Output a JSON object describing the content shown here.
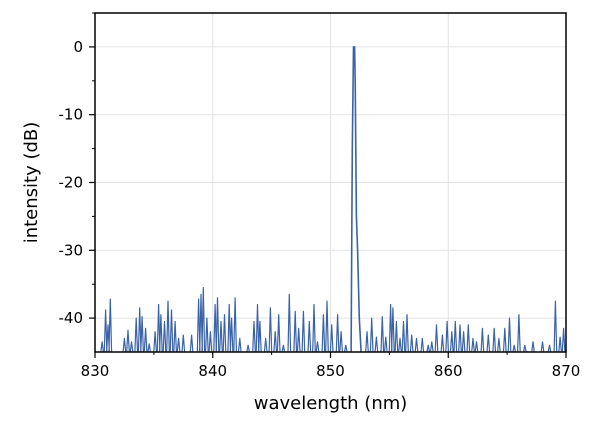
{
  "chart_data": {
    "type": "line",
    "title": "",
    "xlabel": "wavelength (nm)",
    "ylabel": "intensity (dB)",
    "xlim": [
      830,
      870
    ],
    "ylim": [
      -45,
      5
    ],
    "xticks": [
      830,
      840,
      850,
      860,
      870
    ],
    "yticks": [
      0,
      -10,
      -20,
      -30,
      -40
    ],
    "xtick_labels": [
      "830",
      "840",
      "850",
      "860",
      "870"
    ],
    "ytick_labels": [
      "0",
      "-10",
      "-20",
      "-30",
      "-40"
    ],
    "grid": true,
    "line_color": "#3a62a8",
    "noise_floor": -45,
    "series": [
      {
        "x": [
          851.75,
          851.85,
          851.95,
          852.05,
          852.1,
          852.2,
          852.3,
          852.45,
          852.6
        ],
        "y": [
          -45,
          -15,
          0,
          0,
          -5,
          -25,
          -30,
          -40,
          -45
        ]
      }
    ],
    "noise_spikes": [
      [
        830.6,
        -43.5
      ],
      [
        830.9,
        -38.8
      ],
      [
        831.1,
        -41.0
      ],
      [
        831.3,
        -37.2
      ],
      [
        832.5,
        -43.0
      ],
      [
        832.8,
        -41.8
      ],
      [
        833.1,
        -43.5
      ],
      [
        833.5,
        -40.0
      ],
      [
        833.8,
        -38.5
      ],
      [
        834.0,
        -39.8
      ],
      [
        834.3,
        -41.5
      ],
      [
        834.6,
        -43.8
      ],
      [
        835.1,
        -42.0
      ],
      [
        835.4,
        -38.0
      ],
      [
        835.6,
        -39.5
      ],
      [
        835.9,
        -40.5
      ],
      [
        836.2,
        -37.5
      ],
      [
        836.5,
        -38.8
      ],
      [
        836.8,
        -40.5
      ],
      [
        837.1,
        -43.0
      ],
      [
        837.5,
        -42.5
      ],
      [
        838.2,
        -42.5
      ],
      [
        838.8,
        -37.2
      ],
      [
        839.0,
        -36.5
      ],
      [
        839.2,
        -35.5
      ],
      [
        839.5,
        -40.0
      ],
      [
        839.8,
        -42.0
      ],
      [
        840.2,
        -38.0
      ],
      [
        840.4,
        -37.0
      ],
      [
        840.7,
        -40.5
      ],
      [
        841.0,
        -39.5
      ],
      [
        841.4,
        -38.0
      ],
      [
        841.6,
        -40.0
      ],
      [
        841.9,
        -37.0
      ],
      [
        842.3,
        -43.0
      ],
      [
        843.0,
        -44.0
      ],
      [
        843.5,
        -40.5
      ],
      [
        843.8,
        -38.0
      ],
      [
        844.0,
        -40.5
      ],
      [
        844.5,
        -43.0
      ],
      [
        844.9,
        -38.5
      ],
      [
        845.3,
        -42.0
      ],
      [
        845.6,
        -39.5
      ],
      [
        846.0,
        -44.0
      ],
      [
        846.5,
        -36.5
      ],
      [
        847.0,
        -39.0
      ],
      [
        847.3,
        -41.5
      ],
      [
        847.7,
        -39.0
      ],
      [
        848.2,
        -40.5
      ],
      [
        848.6,
        -38.0
      ],
      [
        848.9,
        -43.5
      ],
      [
        849.4,
        -39.5
      ],
      [
        849.7,
        -37.5
      ],
      [
        850.1,
        -41.0
      ],
      [
        850.6,
        -39.5
      ],
      [
        850.9,
        -42.0
      ],
      [
        851.3,
        -44.0
      ],
      [
        853.1,
        -42.0
      ],
      [
        853.5,
        -40.0
      ],
      [
        853.9,
        -42.8
      ],
      [
        854.4,
        -39.8
      ],
      [
        854.7,
        -42.8
      ],
      [
        855.1,
        -38.0
      ],
      [
        855.3,
        -38.5
      ],
      [
        855.6,
        -40.5
      ],
      [
        855.9,
        -43.0
      ],
      [
        856.2,
        -40.5
      ],
      [
        856.5,
        -39.5
      ],
      [
        856.9,
        -42.5
      ],
      [
        857.3,
        -43.0
      ],
      [
        857.8,
        -43.0
      ],
      [
        858.3,
        -44.0
      ],
      [
        858.6,
        -43.5
      ],
      [
        859.0,
        -41.0
      ],
      [
        859.5,
        -42.5
      ],
      [
        859.9,
        -40.5
      ],
      [
        860.3,
        -42.0
      ],
      [
        860.6,
        -40.5
      ],
      [
        861.0,
        -41.0
      ],
      [
        861.3,
        -42.0
      ],
      [
        861.7,
        -41.0
      ],
      [
        862.1,
        -43.0
      ],
      [
        862.4,
        -43.5
      ],
      [
        862.9,
        -41.5
      ],
      [
        863.4,
        -42.5
      ],
      [
        863.9,
        -41.5
      ],
      [
        864.3,
        -43.0
      ],
      [
        864.8,
        -41.5
      ],
      [
        865.2,
        -40.0
      ],
      [
        865.6,
        -44.0
      ],
      [
        866.0,
        -39.5
      ],
      [
        866.5,
        -44.0
      ],
      [
        867.2,
        -43.5
      ],
      [
        868.0,
        -43.5
      ],
      [
        868.6,
        -44.0
      ],
      [
        869.1,
        -37.5
      ],
      [
        869.5,
        -42.8
      ],
      [
        869.8,
        -41.5
      ]
    ]
  }
}
